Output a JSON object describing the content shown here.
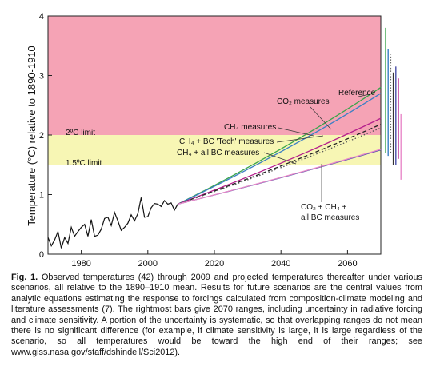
{
  "chart_data": {
    "type": "line",
    "ylabel": "Temperature (°C) relative to 1890-1910",
    "xlim": [
      1970,
      2070
    ],
    "ylim": [
      0,
      4
    ],
    "x_ticks": [
      1980,
      2000,
      2020,
      2040,
      2060
    ],
    "y_ticks": [
      0,
      1,
      2,
      3,
      4
    ],
    "bands": [
      {
        "label": "2ºC limit",
        "from": 2,
        "to": 4,
        "color": "#f5a3b5"
      },
      {
        "label": "1.5ºC limit",
        "from": 1.5,
        "to": 2,
        "color": "#f7f6b4"
      }
    ],
    "observed": {
      "x": [
        1970,
        1971,
        1972,
        1973,
        1974,
        1975,
        1976,
        1977,
        1978,
        1979,
        1980,
        1981,
        1982,
        1983,
        1984,
        1985,
        1986,
        1987,
        1988,
        1989,
        1990,
        1991,
        1992,
        1993,
        1994,
        1995,
        1996,
        1997,
        1998,
        1999,
        2000,
        2001,
        2002,
        2003,
        2004,
        2005,
        2006,
        2007,
        2008,
        2009
      ],
      "y": [
        0.28,
        0.14,
        0.24,
        0.38,
        0.1,
        0.28,
        0.18,
        0.45,
        0.3,
        0.38,
        0.45,
        0.5,
        0.3,
        0.58,
        0.3,
        0.32,
        0.42,
        0.6,
        0.62,
        0.48,
        0.7,
        0.56,
        0.4,
        0.45,
        0.52,
        0.66,
        0.56,
        0.68,
        0.95,
        0.62,
        0.63,
        0.78,
        0.85,
        0.84,
        0.8,
        0.9,
        0.84,
        0.86,
        0.74,
        0.84
      ]
    },
    "series": [
      {
        "name": "Reference",
        "color": "#3aa44a",
        "style": "solid",
        "x": [
          2009,
          2070
        ],
        "y": [
          0.84,
          2.8
        ]
      },
      {
        "name": "CO₂ measures",
        "color": "#3b7fc4",
        "style": "solid",
        "x": [
          2009,
          2070
        ],
        "y": [
          0.84,
          2.7
        ]
      },
      {
        "name": "CH₄ measures",
        "color": "#b5208c",
        "style": "solid",
        "x": [
          2009,
          2070
        ],
        "y": [
          0.84,
          2.28
        ]
      },
      {
        "name": "CH₄ + BC 'Tech' measures",
        "color": "#222222",
        "style": "dashed",
        "x": [
          2009,
          2070
        ],
        "y": [
          0.84,
          2.18
        ]
      },
      {
        "name": "CH₄ + all BC measures",
        "color": "#555555",
        "style": "dotted",
        "x": [
          2009,
          2070
        ],
        "y": [
          0.84,
          2.12
        ]
      },
      {
        "name": "CO₂ + CH₄ + all BC measures",
        "color": "#4a4fa8",
        "style": "solid",
        "x": [
          2009,
          2070
        ],
        "y": [
          0.84,
          1.75
        ]
      },
      {
        "name": "",
        "color": "#e888c8",
        "style": "solid",
        "x": [
          2009,
          2070
        ],
        "y": [
          0.84,
          1.76
        ]
      }
    ],
    "ranges_2070": [
      {
        "color": "#3aa44a",
        "low": 1.7,
        "high": 3.8
      },
      {
        "color": "#3b7fc4",
        "low": 1.65,
        "high": 3.45
      },
      {
        "color": "#666666",
        "low": 1.7,
        "high": 3.35,
        "style": "dotted"
      },
      {
        "color": "#333333",
        "low": 1.5,
        "high": 3.05
      },
      {
        "color": "#4a4fa8",
        "low": 1.5,
        "high": 3.15
      },
      {
        "color": "#b5208c",
        "low": 1.6,
        "high": 2.95
      },
      {
        "color": "#e888c8",
        "low": 1.25,
        "high": 2.35
      }
    ],
    "annotations": [
      {
        "text": "Reference"
      },
      {
        "text": "CO₂ measures"
      },
      {
        "text": "CH₄ measures"
      },
      {
        "text": "CH₄ + BC 'Tech' measures"
      },
      {
        "text": "CH₄ + all BC measures"
      },
      {
        "text": "CO₂ + CH₄ +"
      },
      {
        "text": "all BC measures"
      }
    ]
  },
  "caption": {
    "fig_label": "Fig. 1.",
    "text": "Observed temperatures (42) through 2009 and projected temperatures thereafter under various scenarios, all relative to the 1890–1910 mean. Results for future scenarios are the central values from analytic equations estimating the response to forcings calculated from composition-climate modeling and literature assessments (7). The rightmost bars give 2070 ranges, including uncertainty in radiative forcing and climate sensitivity. A portion of the uncertainty is systematic, so that overlapping ranges do not mean there is no significant difference (for example, if climate sensitivity is large, it is large regardless of the scenario, so all temperatures would be toward the high end of their ranges; see www.giss.nasa.gov/staff/dshindell/Sci2012)."
  }
}
